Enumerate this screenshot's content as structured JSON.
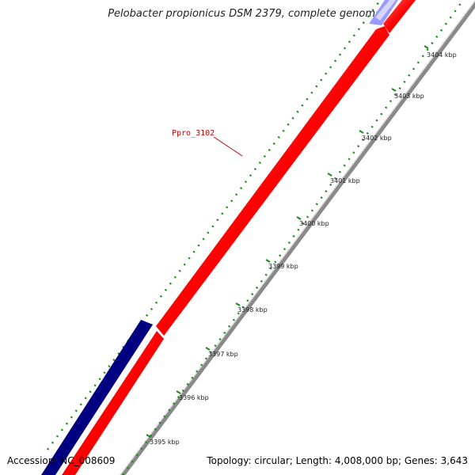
{
  "title": "Pelobacter propionicus DSM 2379, complete genome",
  "accession": "Accession: NC_008609",
  "summary": "Topology: circular; Length: 4,008,000 bp; Genes: 3,643",
  "gene_label": "Ppro_3102",
  "kbp_labels": [
    "3395 kbp",
    "3396 kbp",
    "3397 kbp",
    "3398 kbp",
    "3399 kbp",
    "3400 kbp",
    "3401 kbp",
    "3402 kbp",
    "3403 kbp",
    "3404 kbp"
  ],
  "colors": {
    "forward_gene": "#ff0000",
    "reverse_gene": "#000080",
    "reverse_gene_light": "#b0b0ff",
    "backbone": "#888888",
    "ticks": "#1a7a1a",
    "label": "#cc0000"
  }
}
